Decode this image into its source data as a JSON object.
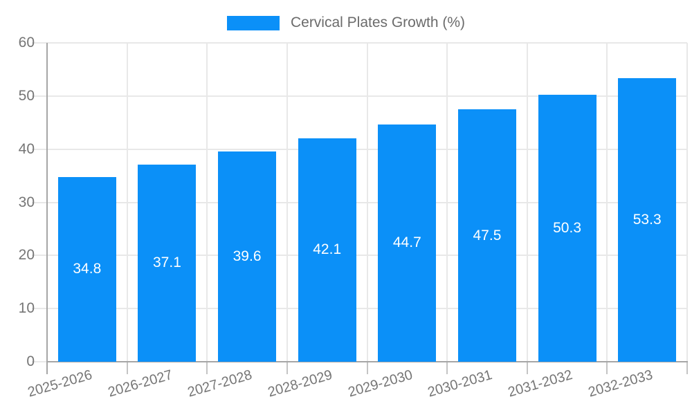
{
  "chart_data": {
    "type": "bar",
    "title": "",
    "legend": {
      "label": "Cervical Plates Growth (%)",
      "position": "top"
    },
    "categories": [
      "2025-2026",
      "2026-2027",
      "2027-2028",
      "2028-2029",
      "2029-2030",
      "2030-2031",
      "2031-2032",
      "2032-2033"
    ],
    "values": [
      34.8,
      37.1,
      39.6,
      42.1,
      44.7,
      47.5,
      50.3,
      53.3
    ],
    "xlabel": "",
    "ylabel": "",
    "ylim": [
      0,
      60
    ],
    "yticks": [
      0,
      10,
      20,
      30,
      40,
      50,
      60
    ],
    "grid": true,
    "colors": {
      "bar": "#0b90f8",
      "bar_label": "#ffffff",
      "axis_text": "#757575",
      "legend_text": "#6b6b6b",
      "gridline": "#e8e8e8",
      "axis_line": "#a6a6a6",
      "tick": "#c4c4c4",
      "background": "#ffffff"
    }
  }
}
